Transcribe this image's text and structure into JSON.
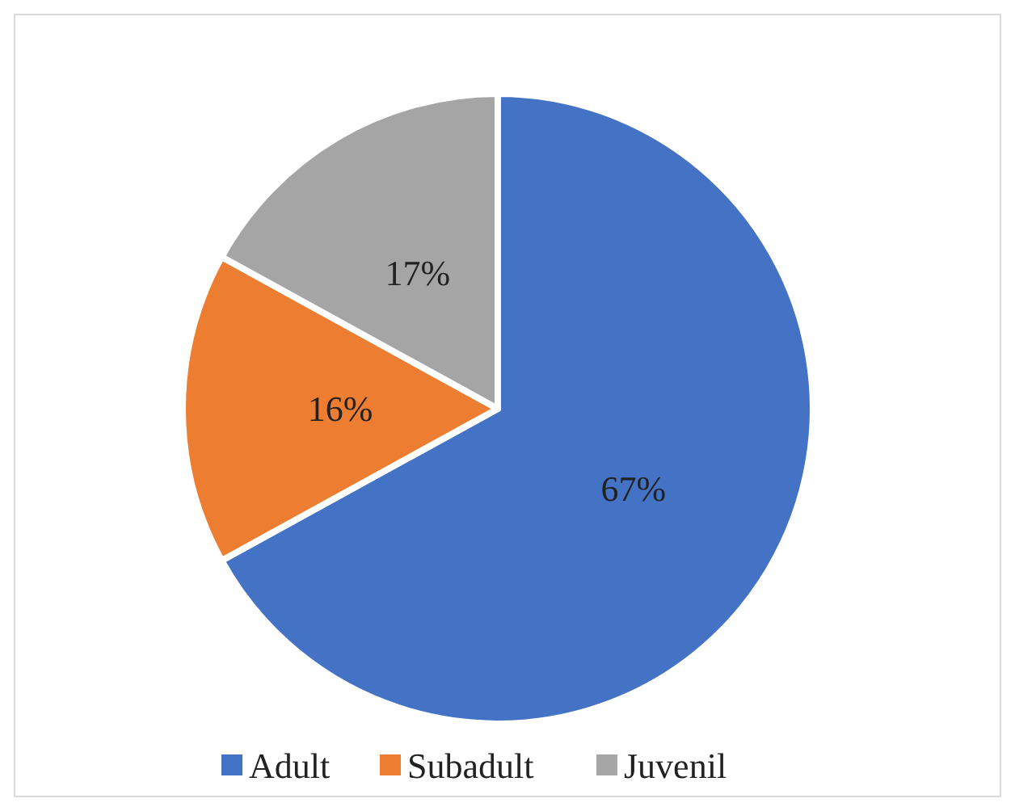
{
  "chart_data": {
    "type": "pie",
    "categories": [
      "Adult",
      "Subadult",
      "Juvenil"
    ],
    "values": [
      67,
      16,
      17
    ],
    "colors": [
      "#4472c4",
      "#ed7d31",
      "#a5a5a5"
    ],
    "value_labels": [
      "67%",
      "16%",
      "17%"
    ],
    "legend": "bottom"
  }
}
